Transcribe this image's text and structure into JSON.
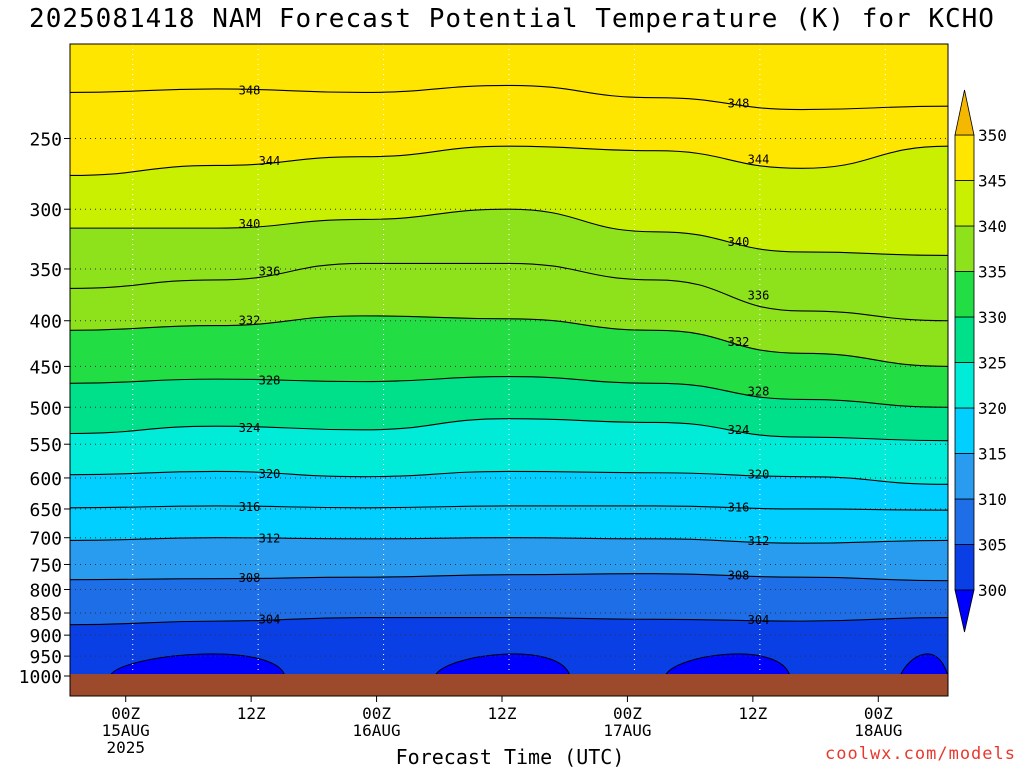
{
  "chart_data": {
    "type": "contour",
    "title": "2025081418 NAM Forecast Potential Temperature (K) for KCHO",
    "xlabel": "Forecast Time (UTC)",
    "ylabel": "",
    "credit": "coolwx.com/models",
    "y_axis": {
      "scale": "log-pressure",
      "reversed": true,
      "ticks": [
        "250",
        "300",
        "350",
        "400",
        "450",
        "500",
        "550",
        "600",
        "650",
        "700",
        "750",
        "800",
        "850",
        "900",
        "950",
        "1000"
      ],
      "range": [
        200,
        1000
      ]
    },
    "x_axis": {
      "ticks": [
        {
          "label": "00Z",
          "date": "15AUG",
          "year": "2025"
        },
        {
          "label": "12Z",
          "date": "",
          "year": ""
        },
        {
          "label": "00Z",
          "date": "16AUG",
          "year": ""
        },
        {
          "label": "12Z",
          "date": "",
          "year": ""
        },
        {
          "label": "00Z",
          "date": "17AUG",
          "year": ""
        },
        {
          "label": "12Z",
          "date": "",
          "year": ""
        },
        {
          "label": "00Z",
          "date": "18AUG",
          "year": ""
        }
      ],
      "range_hours_from_init": [
        0,
        84
      ]
    },
    "colorbar": {
      "levels": [
        300,
        305,
        310,
        315,
        320,
        325,
        330,
        335,
        340,
        345,
        350
      ],
      "colors": [
        "#0000ff",
        "#0a3fe6",
        "#1e6ee8",
        "#2a9cf0",
        "#00cfff",
        "#00ecd8",
        "#00e08a",
        "#22dd44",
        "#8ee21c",
        "#c8f000",
        "#ffe600",
        "#f5b800"
      ],
      "extend": "both"
    },
    "contour_lines": [
      {
        "theta": 304,
        "pressure": [
          876,
          868,
          860,
          860,
          864,
          868,
          860
        ]
      },
      {
        "theta": 308,
        "pressure": [
          780,
          778,
          775,
          770,
          768,
          775,
          782
        ]
      },
      {
        "theta": 312,
        "pressure": [
          705,
          700,
          702,
          700,
          702,
          710,
          705
        ]
      },
      {
        "theta": 316,
        "pressure": [
          648,
          645,
          648,
          645,
          645,
          650,
          652
        ]
      },
      {
        "theta": 320,
        "pressure": [
          595,
          590,
          598,
          590,
          592,
          598,
          610
        ]
      },
      {
        "theta": 324,
        "pressure": [
          535,
          525,
          530,
          515,
          520,
          540,
          545
        ]
      },
      {
        "theta": 328,
        "pressure": [
          470,
          465,
          468,
          462,
          470,
          490,
          500
        ]
      },
      {
        "theta": 332,
        "pressure": [
          410,
          405,
          395,
          398,
          410,
          435,
          450
        ]
      },
      {
        "theta": 336,
        "pressure": [
          368,
          360,
          345,
          345,
          360,
          390,
          400
        ]
      },
      {
        "theta": 340,
        "pressure": [
          315,
          315,
          308,
          300,
          318,
          335,
          338
        ]
      },
      {
        "theta": 344,
        "pressure": [
          275,
          268,
          262,
          255,
          258,
          270,
          255
        ]
      },
      {
        "theta": 348,
        "pressure": [
          222,
          220,
          222,
          218,
          225,
          232,
          230
        ]
      }
    ],
    "contour_labels": [
      "304",
      "308",
      "312",
      "316",
      "320",
      "324",
      "328",
      "332",
      "336",
      "340",
      "344",
      "348"
    ],
    "grid": true
  }
}
